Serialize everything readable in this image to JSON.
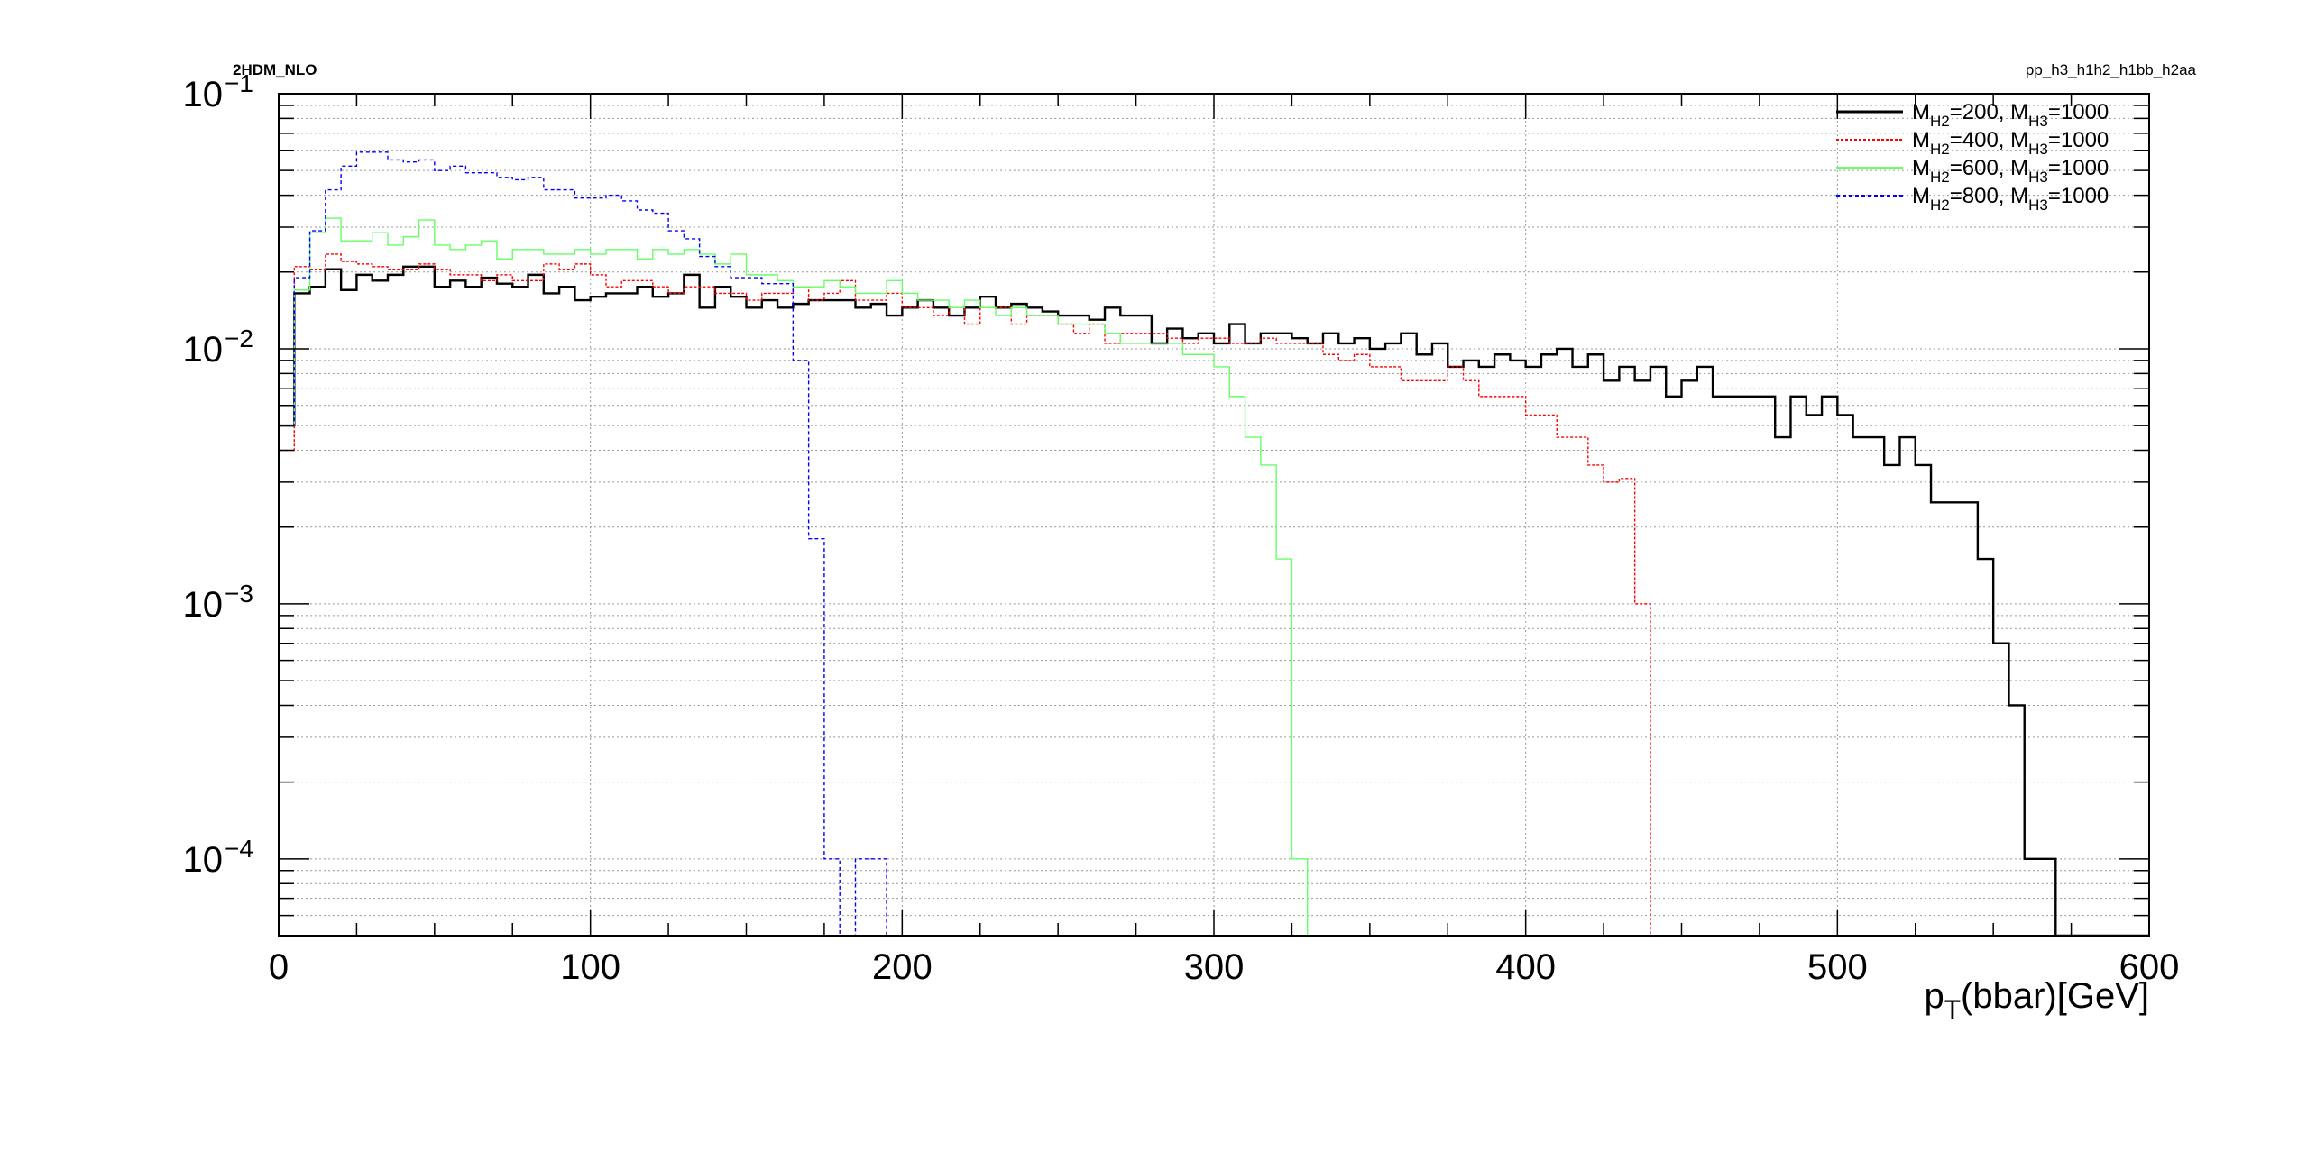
{
  "corner_labels": {
    "left": "2HDM_NLO",
    "right": "pp_h3_h1h2_h1bb_h2aa"
  },
  "chart_data": {
    "type": "line",
    "style": "step-histogram",
    "title": "",
    "xlabel": {
      "p": "p",
      "sub": "T",
      "rest": "(bbar)[GeV]"
    },
    "ylabel": "",
    "xlim": [
      0,
      600
    ],
    "ylim": [
      5e-05,
      0.1
    ],
    "y_scale": "log",
    "grid": true,
    "legend_position": "top-right",
    "x_ticks": [
      "0",
      "100",
      "200",
      "300",
      "400",
      "500",
      "600"
    ],
    "y_ticks": [
      {
        "base": "10",
        "exp": "−1",
        "value": 0.1
      },
      {
        "base": "10",
        "exp": "−2",
        "value": 0.01
      },
      {
        "base": "10",
        "exp": "−3",
        "value": 0.001
      },
      {
        "base": "10",
        "exp": "−4",
        "value": 0.0001
      }
    ],
    "bin_width": 5,
    "x_start": 0,
    "series": [
      {
        "legend": {
          "m1": "M",
          "s1": "H2",
          "v1": "=200, ",
          "m2": "M",
          "s2": "H3",
          "v2": "=1000"
        },
        "color": "#000000",
        "dash": "",
        "width": 2.4,
        "values": [
          0.005,
          0.0165,
          0.0175,
          0.0205,
          0.017,
          0.0195,
          0.0185,
          0.0195,
          0.021,
          0.021,
          0.0175,
          0.0185,
          0.0175,
          0.019,
          0.018,
          0.0175,
          0.0195,
          0.0165,
          0.0175,
          0.0155,
          0.016,
          0.0165,
          0.0165,
          0.0175,
          0.016,
          0.0165,
          0.0195,
          0.0145,
          0.0175,
          0.016,
          0.0145,
          0.0155,
          0.0145,
          0.015,
          0.0155,
          0.0155,
          0.0155,
          0.0145,
          0.015,
          0.0135,
          0.0145,
          0.0155,
          0.0145,
          0.0135,
          0.0145,
          0.016,
          0.0145,
          0.015,
          0.0145,
          0.014,
          0.0135,
          0.0135,
          0.013,
          0.0145,
          0.0135,
          0.0135,
          0.0105,
          0.012,
          0.011,
          0.0115,
          0.0105,
          0.0125,
          0.0105,
          0.0115,
          0.0115,
          0.011,
          0.0105,
          0.0115,
          0.0105,
          0.011,
          0.01,
          0.0105,
          0.0115,
          0.0095,
          0.0105,
          0.0085,
          0.009,
          0.0085,
          0.0095,
          0.009,
          0.0085,
          0.0095,
          0.01,
          0.0085,
          0.0095,
          0.0075,
          0.0085,
          0.0075,
          0.0085,
          0.0065,
          0.0075,
          0.0085,
          0.0065,
          0.0065,
          0.0065,
          0.0065,
          0.0045,
          0.0065,
          0.0055,
          0.0065,
          0.0055,
          0.0045,
          0.0045,
          0.0035,
          0.0045,
          0.0035,
          0.0025,
          0.0025,
          0.0025,
          0.0015,
          0.0007,
          0.0004,
          0.0001,
          0.0001,
          0,
          0,
          0,
          0,
          0,
          0
        ]
      },
      {
        "legend": {
          "m1": "M",
          "s1": "H2",
          "v1": "=400, ",
          "m2": "M",
          "s2": "H3",
          "v2": "=1000"
        },
        "color": "#ff0000",
        "dash": "3,2",
        "width": 1.4,
        "values": [
          0.004,
          0.021,
          0.0205,
          0.0235,
          0.022,
          0.0215,
          0.021,
          0.0205,
          0.0205,
          0.0215,
          0.0205,
          0.0195,
          0.0195,
          0.0185,
          0.0195,
          0.0185,
          0.0185,
          0.0215,
          0.0205,
          0.0215,
          0.0195,
          0.0175,
          0.0185,
          0.0185,
          0.0175,
          0.0165,
          0.0175,
          0.0175,
          0.0165,
          0.0165,
          0.0155,
          0.0165,
          0.0165,
          0.0175,
          0.0155,
          0.0165,
          0.0185,
          0.0155,
          0.0155,
          0.0165,
          0.0145,
          0.0145,
          0.0135,
          0.0145,
          0.0125,
          0.0145,
          0.0145,
          0.0125,
          0.0135,
          0.0135,
          0.0125,
          0.0115,
          0.0125,
          0.0105,
          0.0115,
          0.0115,
          0.0115,
          0.011,
          0.0105,
          0.011,
          0.011,
          0.0105,
          0.0105,
          0.011,
          0.0105,
          0.0105,
          0.0105,
          0.0095,
          0.009,
          0.0095,
          0.0085,
          0.0085,
          0.0075,
          0.0075,
          0.0075,
          0.0085,
          0.0075,
          0.0065,
          0.0065,
          0.0065,
          0.0055,
          0.0055,
          0.0045,
          0.0045,
          0.0035,
          0.003,
          0.0031,
          0.001,
          3e-05,
          0,
          0,
          0,
          0,
          0,
          0,
          0,
          0,
          0,
          0,
          0,
          0,
          0,
          0,
          0,
          0,
          0,
          0,
          0,
          0,
          0,
          0,
          0,
          0,
          0,
          0,
          0,
          0,
          0,
          0,
          0,
          0
        ]
      },
      {
        "legend": {
          "m1": "M",
          "s1": "H2",
          "v1": "=600, ",
          "m2": "M",
          "s2": "H3",
          "v2": "=1000"
        },
        "color": "#66ff66",
        "dash": "",
        "width": 1.4,
        "values": [
          0.005,
          0.017,
          0.0285,
          0.0325,
          0.0265,
          0.0265,
          0.0285,
          0.0255,
          0.0275,
          0.032,
          0.0255,
          0.0245,
          0.0255,
          0.0265,
          0.0225,
          0.0245,
          0.0245,
          0.0235,
          0.0235,
          0.0245,
          0.0235,
          0.0245,
          0.0245,
          0.0225,
          0.0245,
          0.0235,
          0.0245,
          0.0235,
          0.0215,
          0.0235,
          0.0195,
          0.0195,
          0.0185,
          0.0175,
          0.0175,
          0.0185,
          0.0175,
          0.0165,
          0.0165,
          0.0185,
          0.0165,
          0.0155,
          0.0155,
          0.0145,
          0.0155,
          0.0145,
          0.0135,
          0.0145,
          0.0135,
          0.0135,
          0.0125,
          0.0125,
          0.0125,
          0.0115,
          0.0105,
          0.0105,
          0.0105,
          0.0105,
          0.0095,
          0.0095,
          0.0085,
          0.0065,
          0.0045,
          0.0035,
          0.0015,
          0.0001,
          3e-05,
          0,
          0,
          0,
          0,
          0,
          0,
          0,
          0,
          0,
          0,
          0,
          0,
          0,
          0,
          0,
          0,
          0,
          0,
          0,
          0,
          0,
          0,
          0,
          0,
          0,
          0,
          0,
          0,
          0,
          0,
          0,
          0,
          0,
          0,
          0,
          0,
          0,
          0,
          0,
          0,
          0,
          0,
          0,
          0,
          0,
          0,
          0,
          0,
          0,
          0,
          0,
          0,
          0,
          0,
          0
        ]
      },
      {
        "legend": {
          "m1": "M",
          "s1": "H2",
          "v1": "=800, ",
          "m2": "M",
          "s2": "H3",
          "v2": "=1000"
        },
        "color": "#0000ff",
        "dash": "4,3",
        "width": 1.4,
        "values": [
          0.005,
          0.019,
          0.029,
          0.042,
          0.052,
          0.059,
          0.059,
          0.055,
          0.054,
          0.055,
          0.05,
          0.052,
          0.049,
          0.049,
          0.047,
          0.046,
          0.047,
          0.042,
          0.042,
          0.039,
          0.039,
          0.04,
          0.038,
          0.035,
          0.034,
          0.029,
          0.027,
          0.023,
          0.021,
          0.019,
          0.019,
          0.018,
          0.018,
          0.009,
          0.0018,
          0.0001,
          3e-05,
          0.0001,
          0.0001,
          3e-05,
          0,
          0,
          0,
          0,
          0,
          0,
          0,
          0,
          0,
          0,
          0,
          0,
          0,
          0,
          0,
          0,
          0,
          0,
          0,
          0,
          0,
          0,
          0,
          0,
          0,
          0,
          0,
          0,
          0,
          0,
          0,
          0,
          0,
          0,
          0,
          0,
          0,
          0,
          0,
          0,
          0,
          0,
          0,
          0,
          0,
          0,
          0,
          0,
          0,
          0,
          0,
          0,
          0,
          0,
          0,
          0,
          0,
          0,
          0,
          0,
          0,
          0,
          0,
          0,
          0,
          0,
          0,
          0,
          0,
          0,
          0,
          0,
          0,
          0,
          0,
          0,
          0,
          0,
          0,
          0
        ]
      }
    ]
  }
}
